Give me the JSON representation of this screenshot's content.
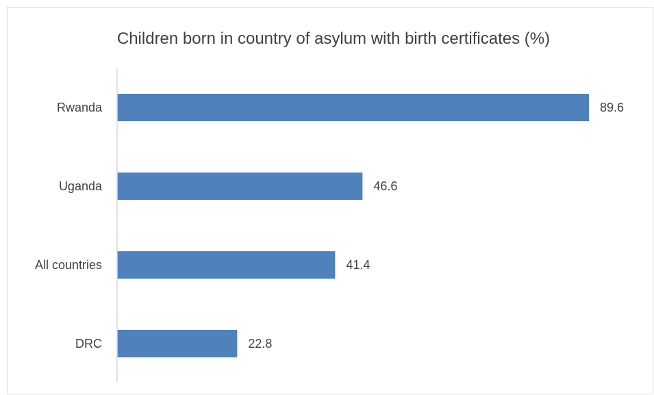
{
  "chart_data": {
    "type": "bar",
    "orientation": "horizontal",
    "title": "Children born in country of asylum with birth certificates (%)",
    "categories": [
      "Rwanda",
      "Uganda",
      "All countries",
      "DRC"
    ],
    "values": [
      89.6,
      46.6,
      41.4,
      22.8
    ],
    "value_labels": [
      "89.6",
      "46.6",
      "41.4",
      "22.8"
    ],
    "xlabel": "",
    "ylabel": "",
    "xlim": [
      0,
      89.6
    ],
    "grid": false,
    "legend": "none",
    "bar_color": "#4f81bd",
    "axis_color": "#d9d9d9",
    "text_color": "#404040"
  }
}
